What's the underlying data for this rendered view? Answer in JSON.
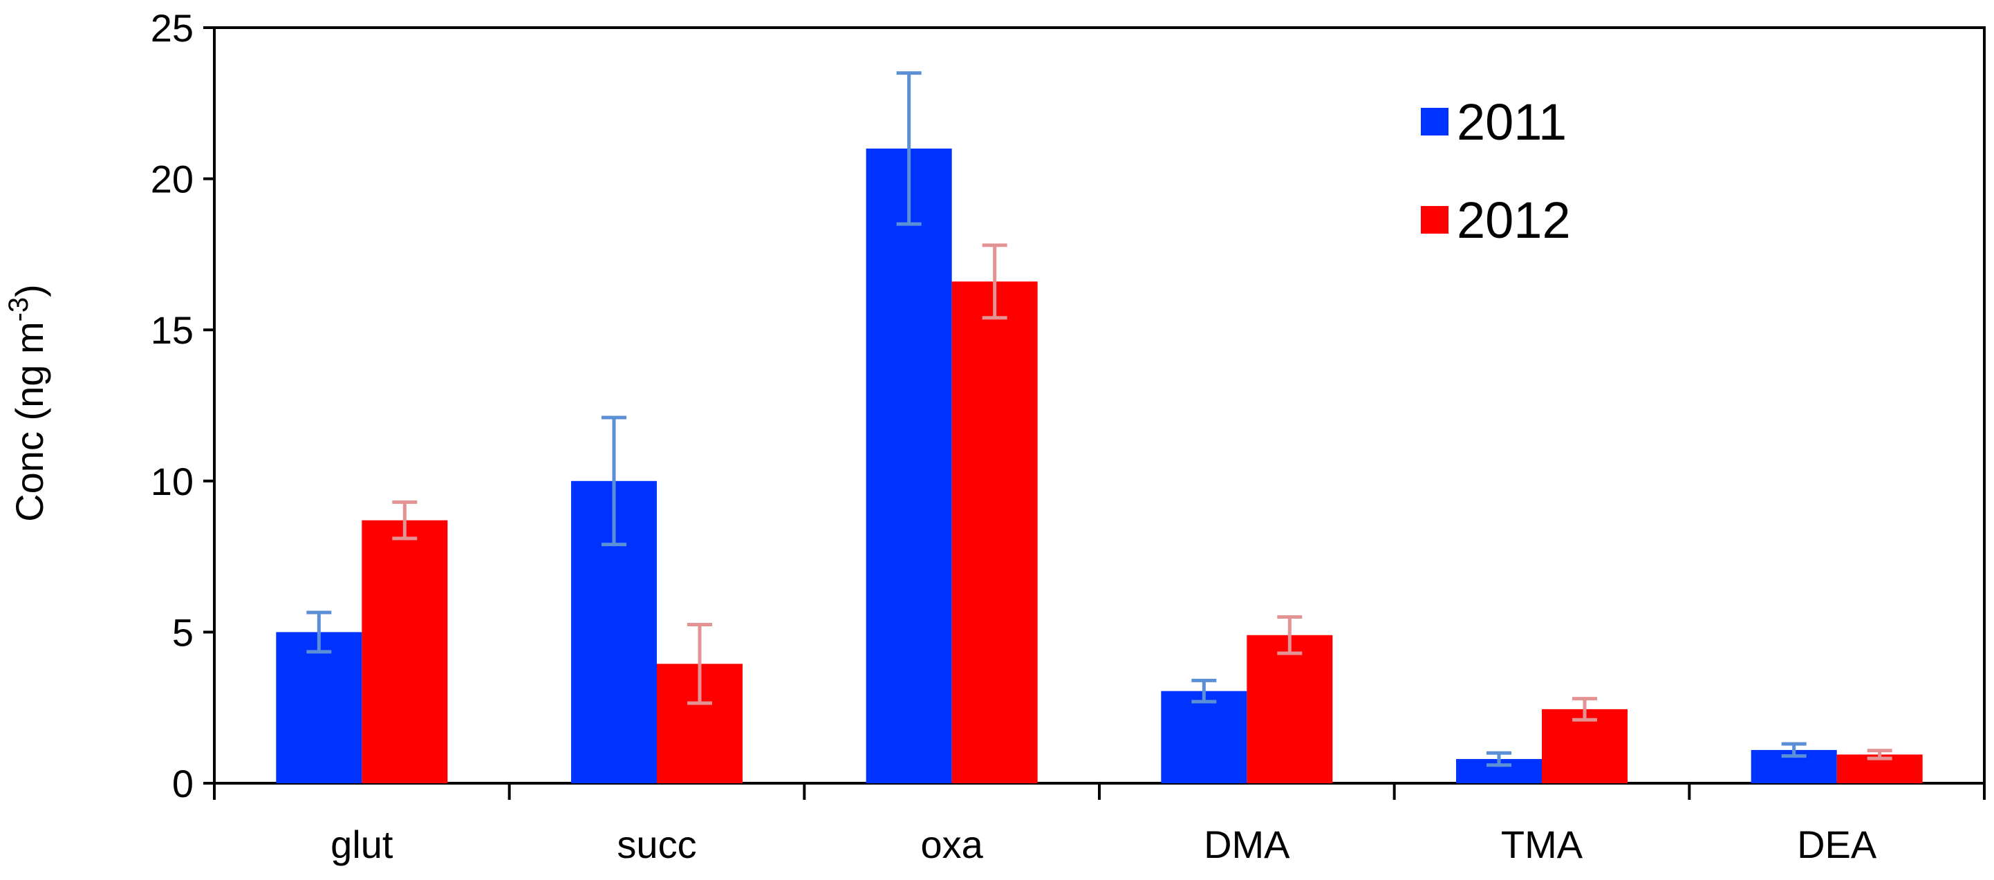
{
  "chart_data": {
    "type": "bar",
    "title": "",
    "xlabel": "",
    "ylabel": "Conc (ng m",
    "ylabel_superscript": "-3",
    "ylabel_suffix": ")",
    "ylim": [
      0,
      25
    ],
    "yticks": [
      0,
      5,
      10,
      15,
      20,
      25
    ],
    "grid": false,
    "legend_position": "top-right",
    "categories": [
      "glut",
      "succ",
      "oxa",
      "DMA",
      "TMA",
      "DEA"
    ],
    "series": [
      {
        "name": "2011",
        "color": "#0033ff",
        "error_color": "#5b8fd6",
        "values": [
          5.0,
          10.0,
          21.0,
          3.05,
          0.8,
          1.1
        ],
        "errors": [
          0.65,
          2.1,
          2.5,
          0.35,
          0.2,
          0.2
        ]
      },
      {
        "name": "2012",
        "color": "#ff0000",
        "error_color": "#e39393",
        "values": [
          8.7,
          3.95,
          16.6,
          4.9,
          2.45,
          0.95
        ],
        "errors": [
          0.6,
          1.3,
          1.2,
          0.6,
          0.35,
          0.13
        ]
      }
    ]
  }
}
